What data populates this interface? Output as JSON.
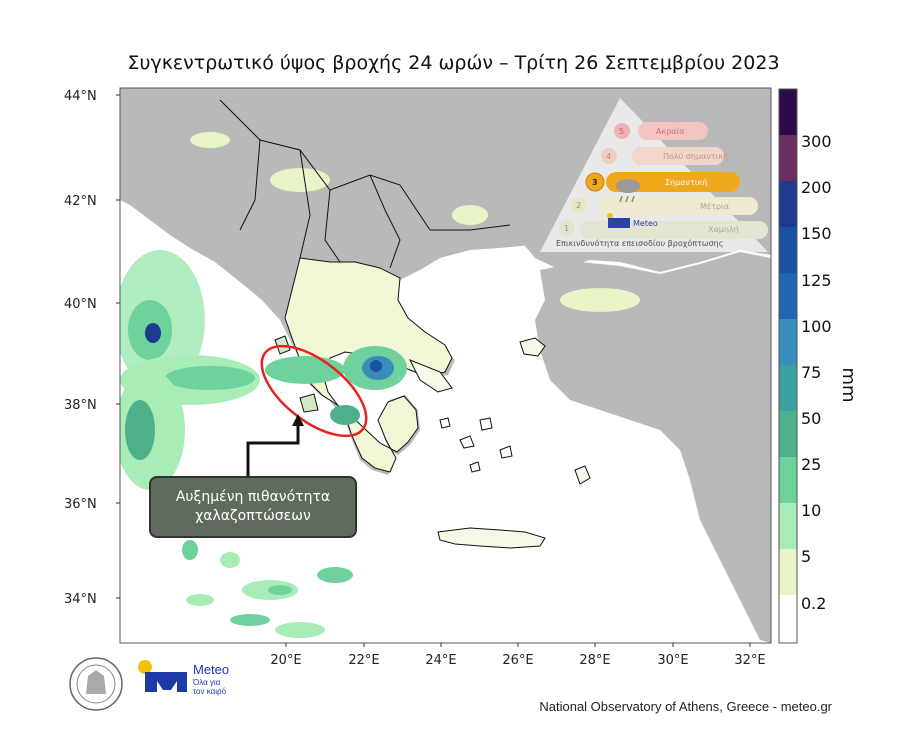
{
  "title": "Συγκεντρωτικό ύψος βροχής 24 ωρών – Τρίτη 26 Σεπτεμβρίου 2023",
  "lat_ticks": [
    "44°N",
    "42°N",
    "40°N",
    "38°N",
    "36°N",
    "34°N"
  ],
  "lon_ticks": [
    "20°E",
    "22°E",
    "24°E",
    "26°E",
    "28°E",
    "30°E",
    "32°E"
  ],
  "colorbar": {
    "units": "mm",
    "labels": [
      "300",
      "200",
      "150",
      "125",
      "100",
      "75",
      "50",
      "25",
      "10",
      "5",
      "0.2"
    ],
    "colors": [
      "#2d0b4a",
      "#6b2d5e",
      "#1d3a8c",
      "#1a52a0",
      "#2266b0",
      "#3a8cbd",
      "#3aa0a0",
      "#4db088",
      "#6fd19b",
      "#a8ecb8",
      "#e8f5c8",
      "#ffffff"
    ]
  },
  "callout": "Αυξημένη πιθανότητα χαλαζοπτώσεων",
  "warning_scale": {
    "caption": "Επικινδυνότητα επεισοδίου βροχόπτωσης",
    "levels": [
      {
        "n": "5",
        "label": "Ακραία"
      },
      {
        "n": "4",
        "label": "Πολύ σημαντική"
      },
      {
        "n": "3",
        "label": "Σημαντική"
      },
      {
        "n": "2",
        "label": "Μέτρια"
      },
      {
        "n": "1",
        "label": "Χαμηλή"
      }
    ],
    "active_level": 3,
    "brand": "Meteo"
  },
  "logo": {
    "name": "Meteo",
    "tagline": "Όλα για τον καιρό"
  },
  "credit": "National Observatory of Athens, Greece - meteo.gr",
  "colors": {
    "land": "#b9b9b9",
    "sea": "#ffffff",
    "highlight_circle": "#e52420",
    "accent_orange": "#f4a70f",
    "brand_blue": "#1e3aa8"
  }
}
